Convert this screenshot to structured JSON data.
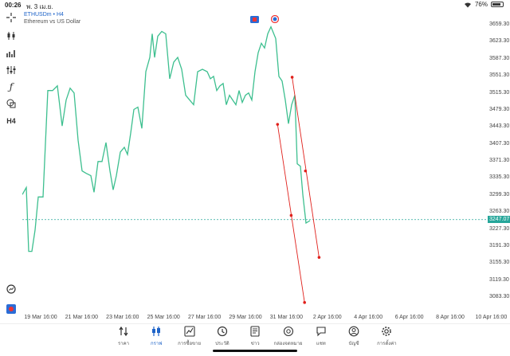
{
  "status": {
    "time": "00:26",
    "date": "พ. 3 เม.ย.",
    "battery": "76%",
    "battery_level": 0.76
  },
  "symbol": {
    "ticker_line": "ETHUSDm • H4",
    "description": "Ethereum vs US Dollar"
  },
  "price_axis": {
    "ticks": [
      "3659.30",
      "3623.30",
      "3587.30",
      "3551.30",
      "3515.30",
      "3479.30",
      "3443.30",
      "3407.30",
      "3371.30",
      "3335.30",
      "3299.30",
      "3263.30",
      "3227.30",
      "3191.30",
      "3155.30",
      "3119.30",
      "3083.30"
    ],
    "current_price": "3247.07",
    "current_color": "#26a69a"
  },
  "time_axis": {
    "ticks": [
      "19 Mar 16:00",
      "21 Mar 16:00",
      "23 Mar 16:00",
      "25 Mar 16:00",
      "27 Mar 16:00",
      "29 Mar 16:00",
      "31 Mar 16:00",
      "2 Apr 16:00",
      "4 Apr 16:00",
      "6 Apr 16:00",
      "8 Apr 16:00",
      "10 Apr 16:00"
    ]
  },
  "chart_data": {
    "type": "line",
    "ylim": [
      3060,
      3675
    ],
    "xlim": [
      0,
      583
    ],
    "line_color": "#3dbf8f",
    "price": [
      [
        0,
        3300
      ],
      [
        5,
        3315
      ],
      [
        8,
        3180
      ],
      [
        12,
        3180
      ],
      [
        16,
        3225
      ],
      [
        20,
        3295
      ],
      [
        26,
        3295
      ],
      [
        32,
        3520
      ],
      [
        38,
        3520
      ],
      [
        44,
        3530
      ],
      [
        50,
        3445
      ],
      [
        55,
        3500
      ],
      [
        60,
        3525
      ],
      [
        65,
        3515
      ],
      [
        70,
        3415
      ],
      [
        75,
        3350
      ],
      [
        80,
        3345
      ],
      [
        86,
        3340
      ],
      [
        90,
        3305
      ],
      [
        95,
        3370
      ],
      [
        100,
        3370
      ],
      [
        105,
        3410
      ],
      [
        110,
        3350
      ],
      [
        114,
        3310
      ],
      [
        118,
        3340
      ],
      [
        123,
        3390
      ],
      [
        128,
        3400
      ],
      [
        132,
        3385
      ],
      [
        136,
        3430
      ],
      [
        140,
        3480
      ],
      [
        145,
        3485
      ],
      [
        150,
        3440
      ],
      [
        155,
        3560
      ],
      [
        160,
        3590
      ],
      [
        163,
        3640
      ],
      [
        166,
        3590
      ],
      [
        170,
        3635
      ],
      [
        175,
        3645
      ],
      [
        180,
        3640
      ],
      [
        185,
        3545
      ],
      [
        190,
        3580
      ],
      [
        195,
        3590
      ],
      [
        200,
        3565
      ],
      [
        205,
        3510
      ],
      [
        210,
        3500
      ],
      [
        215,
        3490
      ],
      [
        220,
        3560
      ],
      [
        226,
        3565
      ],
      [
        232,
        3560
      ],
      [
        236,
        3545
      ],
      [
        240,
        3550
      ],
      [
        244,
        3520
      ],
      [
        248,
        3530
      ],
      [
        252,
        3535
      ],
      [
        256,
        3490
      ],
      [
        260,
        3510
      ],
      [
        264,
        3500
      ],
      [
        268,
        3490
      ],
      [
        272,
        3520
      ],
      [
        276,
        3495
      ],
      [
        280,
        3510
      ],
      [
        284,
        3515
      ],
      [
        288,
        3500
      ],
      [
        292,
        3560
      ],
      [
        296,
        3600
      ],
      [
        300,
        3620
      ],
      [
        304,
        3610
      ],
      [
        308,
        3640
      ],
      [
        312,
        3655
      ],
      [
        318,
        3630
      ],
      [
        322,
        3550
      ],
      [
        326,
        3540
      ],
      [
        330,
        3500
      ],
      [
        334,
        3450
      ],
      [
        338,
        3490
      ],
      [
        342,
        3510
      ],
      [
        345,
        3365
      ],
      [
        349,
        3360
      ],
      [
        352,
        3300
      ],
      [
        356,
        3240
      ],
      [
        361,
        3245
      ]
    ],
    "current_price": 3247.07,
    "trendlines": [
      {
        "start": [
          3448.5,
          320.3
        ],
        "end": [
          3071.8,
          354.2
        ],
        "mid": [
          3256,
          337.4
        ]
      },
      {
        "start": [
          3548.2,
          338.6
        ],
        "end": [
          3167.2,
          372.4
        ],
        "mid": [
          3350,
          355.3
        ]
      }
    ],
    "trend_color": "#e0201b",
    "dashed_color": "#26a69a"
  },
  "left_toolbar": [
    {
      "name": "crosshair-icon",
      "glyph": "✛"
    },
    {
      "name": "candlestick-icon",
      "glyph": ""
    },
    {
      "name": "bar-chart-icon",
      "glyph": ""
    },
    {
      "name": "indicators-icon",
      "glyph": ""
    },
    {
      "name": "function-icon",
      "glyph": "ƒ"
    },
    {
      "name": "shapes-icon",
      "glyph": ""
    },
    {
      "name": "timeframe-button",
      "glyph": "H4"
    }
  ],
  "bottom_nav": [
    {
      "name": "nav-quotes",
      "label": "ราคา",
      "icon": "quotes-icon",
      "active": false
    },
    {
      "name": "nav-chart",
      "label": "กราฟ",
      "icon": "candlestick-icon",
      "active": true
    },
    {
      "name": "nav-trade",
      "label": "การซื้อขาย",
      "icon": "trade-chart-icon",
      "active": false
    },
    {
      "name": "nav-history",
      "label": "ประวัติ",
      "icon": "history-icon",
      "active": false
    },
    {
      "name": "nav-news",
      "label": "ข่าว",
      "icon": "news-icon",
      "active": false
    },
    {
      "name": "nav-mailbox",
      "label": "กล่องจดหมาย",
      "icon": "mail-at-icon",
      "active": false
    },
    {
      "name": "nav-chat",
      "label": "แชท",
      "icon": "chat-icon",
      "active": false
    },
    {
      "name": "nav-accounts",
      "label": "บัญชี",
      "icon": "account-icon",
      "active": false
    },
    {
      "name": "nav-settings",
      "label": "การตั้งค่า",
      "icon": "gear-icon",
      "active": false
    }
  ]
}
